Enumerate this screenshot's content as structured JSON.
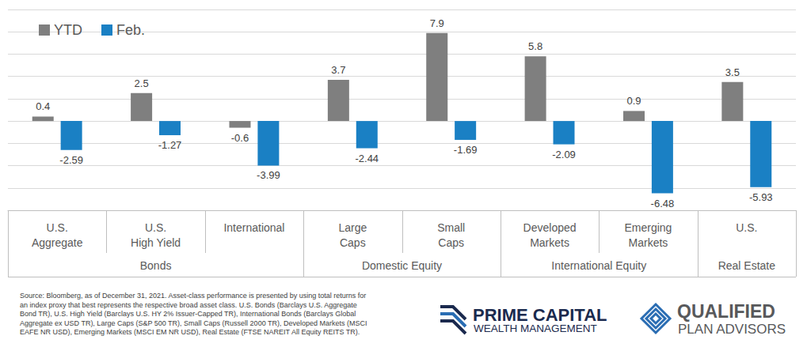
{
  "chart_data": {
    "type": "bar",
    "categories": [
      "U.S.\nAggregate",
      "U.S.\nHigh Yield",
      "International",
      "Large\nCaps",
      "Small\nCaps",
      "Developed\nMarkets",
      "Emerging\nMarkets",
      "U.S."
    ],
    "groups": [
      {
        "label": "Bonds",
        "size": 3
      },
      {
        "label": "Domestic Equity",
        "size": 2
      },
      {
        "label": "International Equity",
        "size": 2
      },
      {
        "label": "Real Estate",
        "size": 1
      }
    ],
    "series": [
      {
        "name": "YTD",
        "color": "#7f7f7f",
        "values": [
          0.4,
          2.5,
          -0.6,
          3.7,
          7.9,
          5.8,
          0.9,
          3.5
        ]
      },
      {
        "name": "Feb.",
        "color": "#1a80c4",
        "values": [
          -2.59,
          -1.27,
          -3.99,
          -2.44,
          -1.69,
          -2.09,
          -6.48,
          -5.93
        ]
      }
    ],
    "ylim": [
      -8,
      10
    ],
    "yticks": [
      -8,
      -6,
      -4,
      -2,
      0,
      2,
      4,
      6,
      8,
      10
    ],
    "grid": true,
    "legend": "top-left",
    "data_labels": true,
    "tick_labels": "x"
  },
  "footer": {
    "source": [
      "Source: Bloomberg, as of December 31, 2021. Asset-class performance is presented by using total returns for",
      "an index proxy that best represents the respective broad asset class. U.S. Bonds (Barclays U.S. Aggregate",
      "Bond TR), U.S. High Yield (Barclays U.S. HY 2% Issuer-Capped TR), International Bonds (Barclays Global",
      "Aggregate ex USD TR), Large Caps (S&P 500 TR), Small Caps (Russell 2000 TR), Developed Markets (MSCI",
      "EAFE NR USD), Emerging Markets (MSCI EM NR USD), Real Estate (FTSE NAREIT All Equity REITS TR)."
    ],
    "logos": [
      {
        "lines": [
          "PRIME CAPITAL",
          "WEALTH MANAGEMENT"
        ]
      },
      {
        "lines": [
          "QUALIFIED",
          "PLAN ADVISORS"
        ]
      }
    ]
  }
}
